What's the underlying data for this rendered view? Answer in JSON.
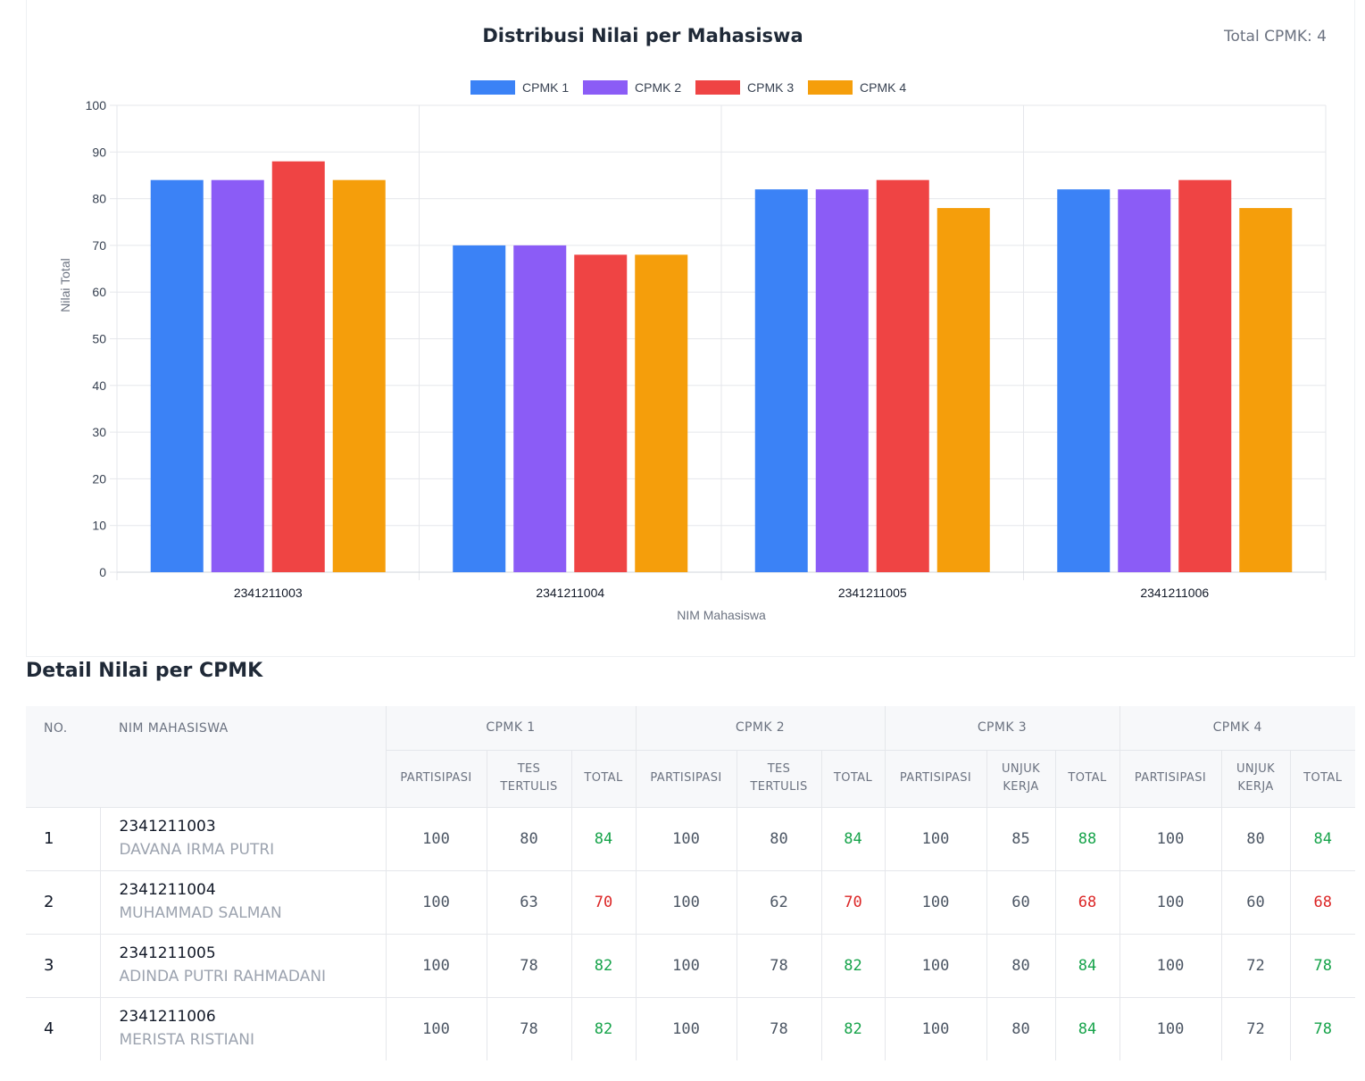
{
  "chart_header": {
    "title": "Distribusi Nilai per Mahasiswa",
    "total_cpmk": "Total CPMK: 4"
  },
  "chart_data": {
    "type": "bar",
    "categories": [
      "2341211003",
      "2341211004",
      "2341211005",
      "2341211006"
    ],
    "series": [
      {
        "name": "CPMK 1",
        "color": "#3b82f6",
        "values": [
          84,
          70,
          82,
          82
        ]
      },
      {
        "name": "CPMK 2",
        "color": "#8b5cf6",
        "values": [
          84,
          70,
          82,
          82
        ]
      },
      {
        "name": "CPMK 3",
        "color": "#ef4444",
        "values": [
          88,
          68,
          84,
          84
        ]
      },
      {
        "name": "CPMK 4",
        "color": "#f59e0b",
        "values": [
          84,
          68,
          78,
          78
        ]
      }
    ],
    "xlabel": "NIM Mahasiswa",
    "ylabel": "Nilai Total",
    "ylim": [
      0,
      100
    ],
    "yticks": [
      0,
      10,
      20,
      30,
      40,
      50,
      60,
      70,
      80,
      90,
      100
    ],
    "grid": true,
    "legend": "top"
  },
  "detail": {
    "heading": "Detail Nilai per CPMK",
    "col_no": "NO.",
    "col_nim": "NIM MAHASISWA",
    "groups": [
      {
        "label": "CPMK 1",
        "sub": [
          "PARTISIPASI",
          "TES TERTULIS",
          "TOTAL"
        ]
      },
      {
        "label": "CPMK 2",
        "sub": [
          "PARTISIPASI",
          "TES TERTULIS",
          "TOTAL"
        ]
      },
      {
        "label": "CPMK 3",
        "sub": [
          "PARTISIPASI",
          "UNJUK KERJA",
          "TOTAL"
        ]
      },
      {
        "label": "CPMK 4",
        "sub": [
          "PARTISIPASI",
          "UNJUK KERJA",
          "TOTAL"
        ]
      }
    ],
    "rows": [
      {
        "no": "1",
        "nim": "2341211003",
        "name": "DAVANA IRMA PUTRI",
        "scores": [
          [
            "100",
            "80",
            "84"
          ],
          [
            "100",
            "80",
            "84"
          ],
          [
            "100",
            "85",
            "88"
          ],
          [
            "100",
            "80",
            "84"
          ]
        ]
      },
      {
        "no": "2",
        "nim": "2341211004",
        "name": "MUHAMMAD SALMAN",
        "scores": [
          [
            "100",
            "63",
            "70"
          ],
          [
            "100",
            "62",
            "70"
          ],
          [
            "100",
            "60",
            "68"
          ],
          [
            "100",
            "60",
            "68"
          ]
        ]
      },
      {
        "no": "3",
        "nim": "2341211005",
        "name": "ADINDA PUTRI RAHMADANI",
        "scores": [
          [
            "100",
            "78",
            "82"
          ],
          [
            "100",
            "78",
            "82"
          ],
          [
            "100",
            "80",
            "84"
          ],
          [
            "100",
            "72",
            "78"
          ]
        ]
      },
      {
        "no": "4",
        "nim": "2341211006",
        "name": "MERISTA RISTIANI",
        "scores": [
          [
            "100",
            "78",
            "82"
          ],
          [
            "100",
            "78",
            "82"
          ],
          [
            "100",
            "80",
            "84"
          ],
          [
            "100",
            "72",
            "78"
          ]
        ]
      }
    ],
    "colors": {
      "pass": "#16a34a",
      "fail": "#dc2626"
    },
    "pass_threshold": 75
  }
}
